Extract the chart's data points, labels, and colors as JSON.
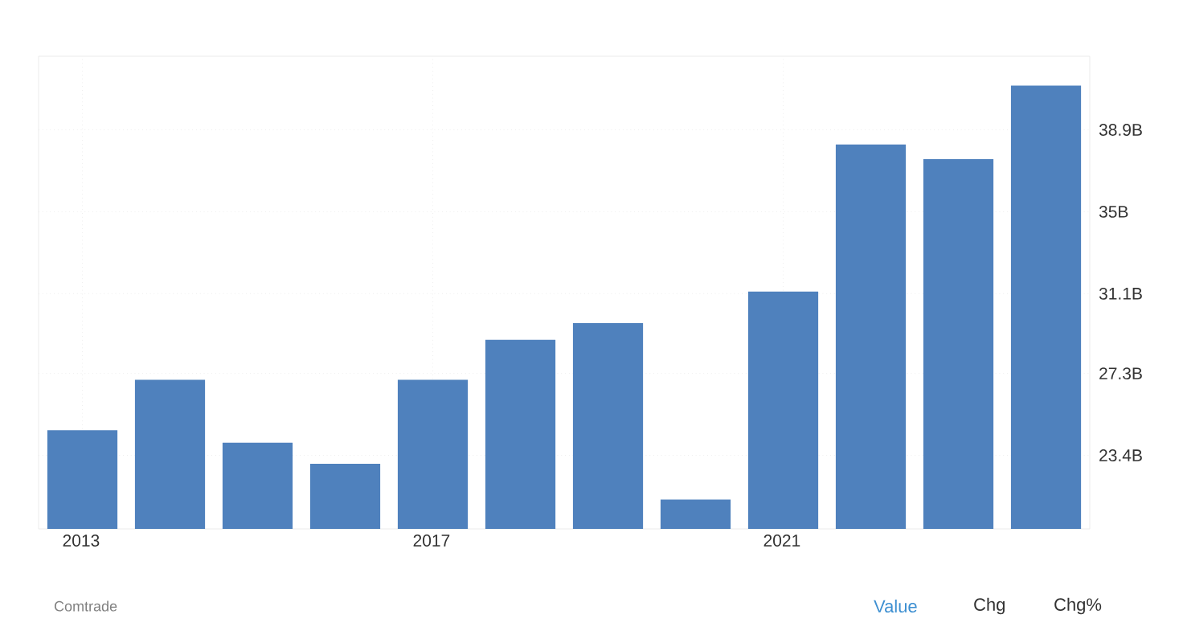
{
  "chart_data": {
    "type": "bar",
    "categories": [
      "2013",
      null,
      null,
      null,
      "2017",
      null,
      null,
      null,
      "2021",
      null,
      null,
      null
    ],
    "values": [
      24.6,
      27.0,
      24.0,
      23.0,
      27.0,
      28.9,
      29.7,
      21.3,
      31.2,
      38.2,
      37.5,
      41.0
    ],
    "color": "#4f81bd",
    "ylim": [
      19.9,
      42.4
    ],
    "yticks": [
      {
        "value": 23.4,
        "label": "23.4B"
      },
      {
        "value": 27.3,
        "label": "27.3B"
      },
      {
        "value": 31.1,
        "label": "31.1B"
      },
      {
        "value": 35,
        "label": "35B"
      },
      {
        "value": 38.9,
        "label": "38.9B"
      }
    ],
    "grid": true,
    "annotations": [
      "Comtrade",
      "Value",
      "Chg",
      "Chg%"
    ]
  }
}
